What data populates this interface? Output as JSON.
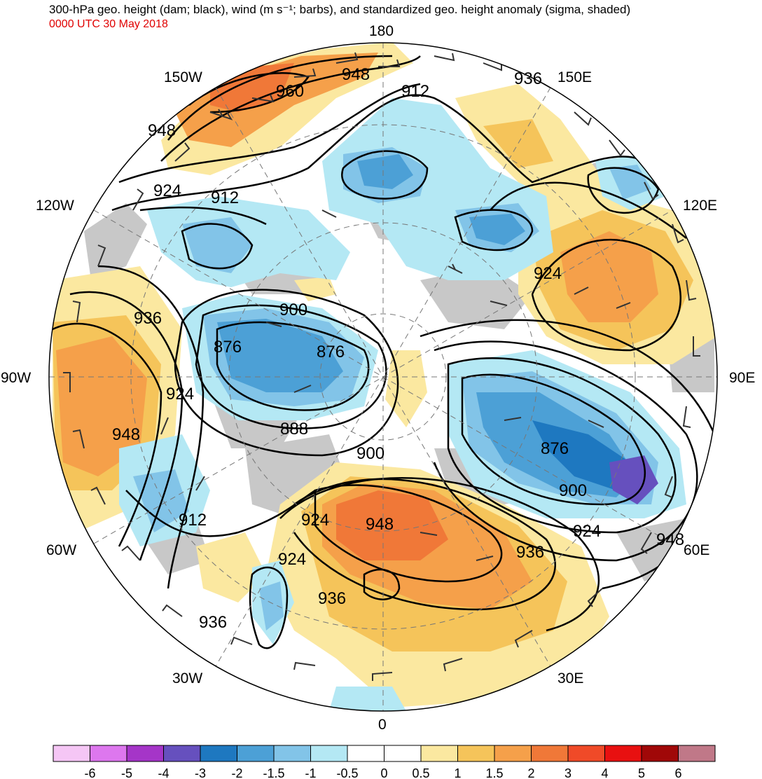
{
  "title": "300-hPa geo. height (dam; black), wind (m s⁻¹; barbs), and standardized geo. height anomaly (sigma, shaded)",
  "valid_time": "0000 UTC 30 May 2018",
  "longitude_labels": {
    "top": "180",
    "bottom": "0",
    "left": "90W",
    "right": "90E",
    "upper_left_1": "150W",
    "upper_left_2": "120W",
    "upper_right_1": "150E",
    "upper_right_2": "120E",
    "lower_left_1": "60W",
    "lower_left_2": "30W",
    "lower_right_1": "60E",
    "lower_right_2": "30E"
  },
  "contour_labels": [
    {
      "id": "c1",
      "text": "960"
    },
    {
      "id": "c2",
      "text": "948"
    },
    {
      "id": "c3",
      "text": "936"
    },
    {
      "id": "c4",
      "text": "912"
    },
    {
      "id": "c5",
      "text": "948"
    },
    {
      "id": "c6",
      "text": "924"
    },
    {
      "id": "c7",
      "text": "912"
    },
    {
      "id": "c8",
      "text": "924"
    },
    {
      "id": "c9",
      "text": "900"
    },
    {
      "id": "c10",
      "text": "936"
    },
    {
      "id": "c11",
      "text": "876"
    },
    {
      "id": "c12",
      "text": "876"
    },
    {
      "id": "c13",
      "text": "924"
    },
    {
      "id": "c14",
      "text": "888"
    },
    {
      "id": "c15",
      "text": "948"
    },
    {
      "id": "c16",
      "text": "900"
    },
    {
      "id": "c17",
      "text": "876"
    },
    {
      "id": "c18",
      "text": "900"
    },
    {
      "id": "c19",
      "text": "924"
    },
    {
      "id": "c20",
      "text": "948"
    },
    {
      "id": "c21",
      "text": "912"
    },
    {
      "id": "c22",
      "text": "924"
    },
    {
      "id": "c23",
      "text": "948"
    },
    {
      "id": "c24",
      "text": "936"
    },
    {
      "id": "c25",
      "text": "924"
    },
    {
      "id": "c26",
      "text": "936"
    }
  ],
  "colorbar": {
    "labels": [
      "-6",
      "-5",
      "-4",
      "-3",
      "-2",
      "-1.5",
      "-1",
      "-0.5",
      "0",
      "0.5",
      "1",
      "1.5",
      "2",
      "3",
      "4",
      "5",
      "6"
    ],
    "colors": [
      "#f5c6f5",
      "#dd77ee",
      "#a535c8",
      "#6650be",
      "#1e78c0",
      "#4ca0d6",
      "#82c4e8",
      "#b4e8f4",
      "#ffffff",
      "#ffffff",
      "#fbe8a0",
      "#f5c45a",
      "#f5a04a",
      "#f07838",
      "#f04a28",
      "#e81010",
      "#a00808",
      "#c07888"
    ]
  },
  "colors": {
    "neg_strong": "#1e78c0",
    "neg_mid": "#4ca0d6",
    "neg_light": "#82c4e8",
    "neg_faint": "#b4e8f4",
    "pos_faint": "#fbe8a0",
    "pos_light": "#f5c45a",
    "pos_mid": "#f5a04a",
    "pos_strong": "#f07838",
    "land_gray": "#c8c8c8",
    "title_red": "#e00000"
  }
}
